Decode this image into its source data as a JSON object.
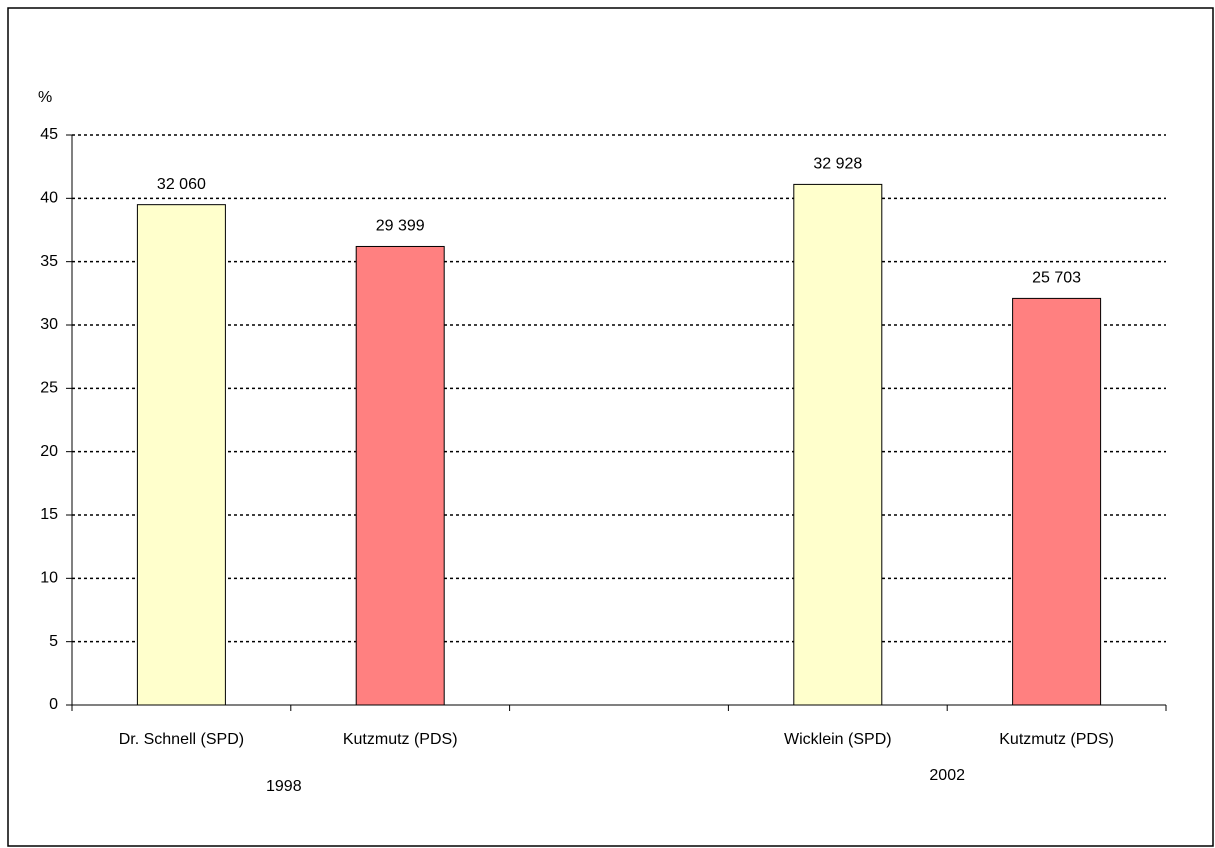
{
  "chart_data": {
    "type": "bar",
    "y_label": "%",
    "categories": [
      "Dr. Schnell (SPD)",
      "Kutzmutz (PDS)",
      null,
      "Wicklein (SPD)",
      "Kutzmutz (PDS)"
    ],
    "values": [
      39.5,
      36.2,
      null,
      41.1,
      32.1
    ],
    "bar_labels": [
      "32 060",
      "29 399",
      null,
      "32 928",
      "25 703"
    ],
    "colors": [
      "#ffffcc",
      "#ff8080",
      null,
      "#ffffcc",
      "#ff8080"
    ],
    "groups": [
      "1998",
      "2002"
    ],
    "ylim": [
      0,
      45
    ],
    "yticks": [
      0,
      5,
      10,
      15,
      20,
      25,
      30,
      35,
      40,
      45
    ],
    "grid": true
  }
}
